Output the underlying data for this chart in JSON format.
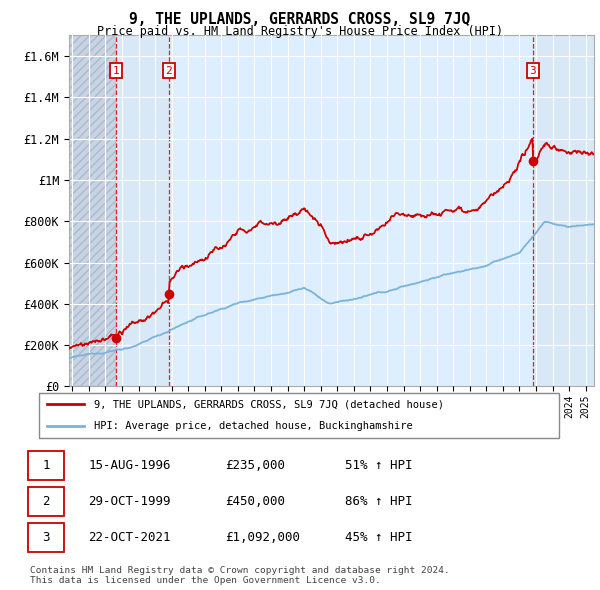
{
  "title": "9, THE UPLANDS, GERRARDS CROSS, SL9 7JQ",
  "subtitle": "Price paid vs. HM Land Registry's House Price Index (HPI)",
  "ylim": [
    0,
    1700000
  ],
  "yticks": [
    0,
    200000,
    400000,
    600000,
    800000,
    1000000,
    1200000,
    1400000,
    1600000
  ],
  "ytick_labels": [
    "£0",
    "£200K",
    "£400K",
    "£600K",
    "£800K",
    "£1M",
    "£1.2M",
    "£1.4M",
    "£1.6M"
  ],
  "sale_prices": [
    235000,
    450000,
    1092000
  ],
  "sale_labels": [
    "1",
    "2",
    "3"
  ],
  "sale_date_nums": [
    1996.62,
    1999.83,
    2021.81
  ],
  "hpi_color": "#7ab4d8",
  "price_color": "#cc0000",
  "legend_price_label": "9, THE UPLANDS, GERRARDS CROSS, SL9 7JQ (detached house)",
  "legend_hpi_label": "HPI: Average price, detached house, Buckinghamshire",
  "table_rows": [
    [
      "1",
      "15-AUG-1996",
      "£235,000",
      "51% ↑ HPI"
    ],
    [
      "2",
      "29-OCT-1999",
      "£450,000",
      "86% ↑ HPI"
    ],
    [
      "3",
      "22-OCT-2021",
      "£1,092,000",
      "45% ↑ HPI"
    ]
  ],
  "footnote": "Contains HM Land Registry data © Crown copyright and database right 2024.\nThis data is licensed under the Open Government Licence v3.0.",
  "xmin": 1993.8,
  "xmax": 2025.5
}
